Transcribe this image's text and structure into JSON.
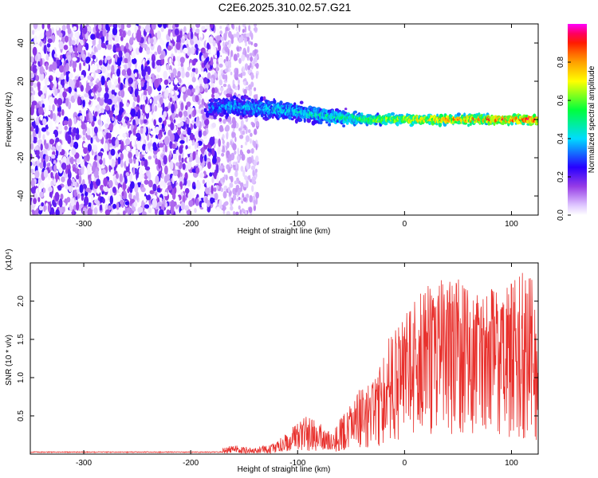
{
  "title": "C2E6.2025.310.02.57.G21",
  "chart_data": [
    {
      "type": "heatmap",
      "xlabel": "Height of straight line (km)",
      "ylabel": "Frequency (Hz)",
      "xlim": [
        -350,
        125
      ],
      "ylim": [
        -50,
        50
      ],
      "xticks": [
        -300,
        -200,
        -100,
        0,
        100
      ],
      "yticks": [
        -40,
        -20,
        0,
        20,
        40
      ],
      "colorbar": {
        "label": "Normalized spectral amplitude",
        "range": [
          0,
          1
        ],
        "ticks": [
          "0.0",
          "0.2",
          "0.4",
          "0.6",
          "0.8"
        ],
        "colors": [
          "#ffffff",
          "#e0c8ff",
          "#8a2be2",
          "#0000ff",
          "#00ffff",
          "#00ff00",
          "#ffff00",
          "#ff8000",
          "#ff0000",
          "#ff00ff"
        ]
      },
      "signal_ridge": {
        "x": [
          -180,
          -160,
          -140,
          -120,
          -100,
          -80,
          -60,
          -40,
          -20,
          0,
          20,
          40,
          60,
          80,
          100,
          120
        ],
        "frequency": [
          6,
          7,
          6,
          5,
          4,
          2,
          1,
          0,
          0,
          0,
          0,
          0,
          0,
          0,
          0,
          0
        ],
        "amplitude": [
          0.35,
          0.4,
          0.4,
          0.45,
          0.45,
          0.5,
          0.5,
          0.6,
          0.7,
          0.75,
          0.8,
          0.85,
          0.9,
          0.9,
          0.9,
          0.95
        ]
      }
    },
    {
      "type": "line",
      "xlabel": "Height of straight line (km)",
      "ylabel": "SNR (10 * v/v)",
      "y_multiplier": "(x10⁴)",
      "xlim": [
        -350,
        125
      ],
      "ylim": [
        0,
        2.5
      ],
      "xticks": [
        -300,
        -200,
        -100,
        0,
        100
      ],
      "yticks": [
        "0.5",
        "1.0",
        "1.5",
        "2.0"
      ],
      "line_color": "#e8312d",
      "series": [
        {
          "x": [
            -350,
            -300,
            -250,
            -200,
            -180,
            -160,
            -140,
            -120,
            -100,
            -90,
            -80,
            -70,
            -60,
            -50,
            -40,
            -30,
            -20,
            -10,
            0,
            10,
            20,
            30,
            40,
            50,
            60,
            70,
            80,
            90,
            100,
            110,
            120,
            125
          ],
          "y": [
            0.02,
            0.02,
            0.02,
            0.02,
            0.03,
            0.05,
            0.04,
            0.08,
            0.2,
            0.22,
            0.18,
            0.16,
            0.22,
            0.35,
            0.45,
            0.6,
            0.8,
            0.95,
            1.1,
            1.3,
            1.45,
            1.6,
            1.75,
            1.7,
            1.6,
            1.65,
            1.55,
            1.45,
            1.5,
            1.4,
            1.2,
            0.6
          ],
          "envelope": [
            0.03,
            0.03,
            0.03,
            0.03,
            0.05,
            0.12,
            0.08,
            0.15,
            0.45,
            0.5,
            0.4,
            0.35,
            0.5,
            0.65,
            0.9,
            1.0,
            1.45,
            1.6,
            1.8,
            2.1,
            2.2,
            2.3,
            2.3,
            2.3,
            2.2,
            2.1,
            2.2,
            2.05,
            2.3,
            2.45,
            2.4,
            1.5
          ]
        }
      ]
    }
  ]
}
